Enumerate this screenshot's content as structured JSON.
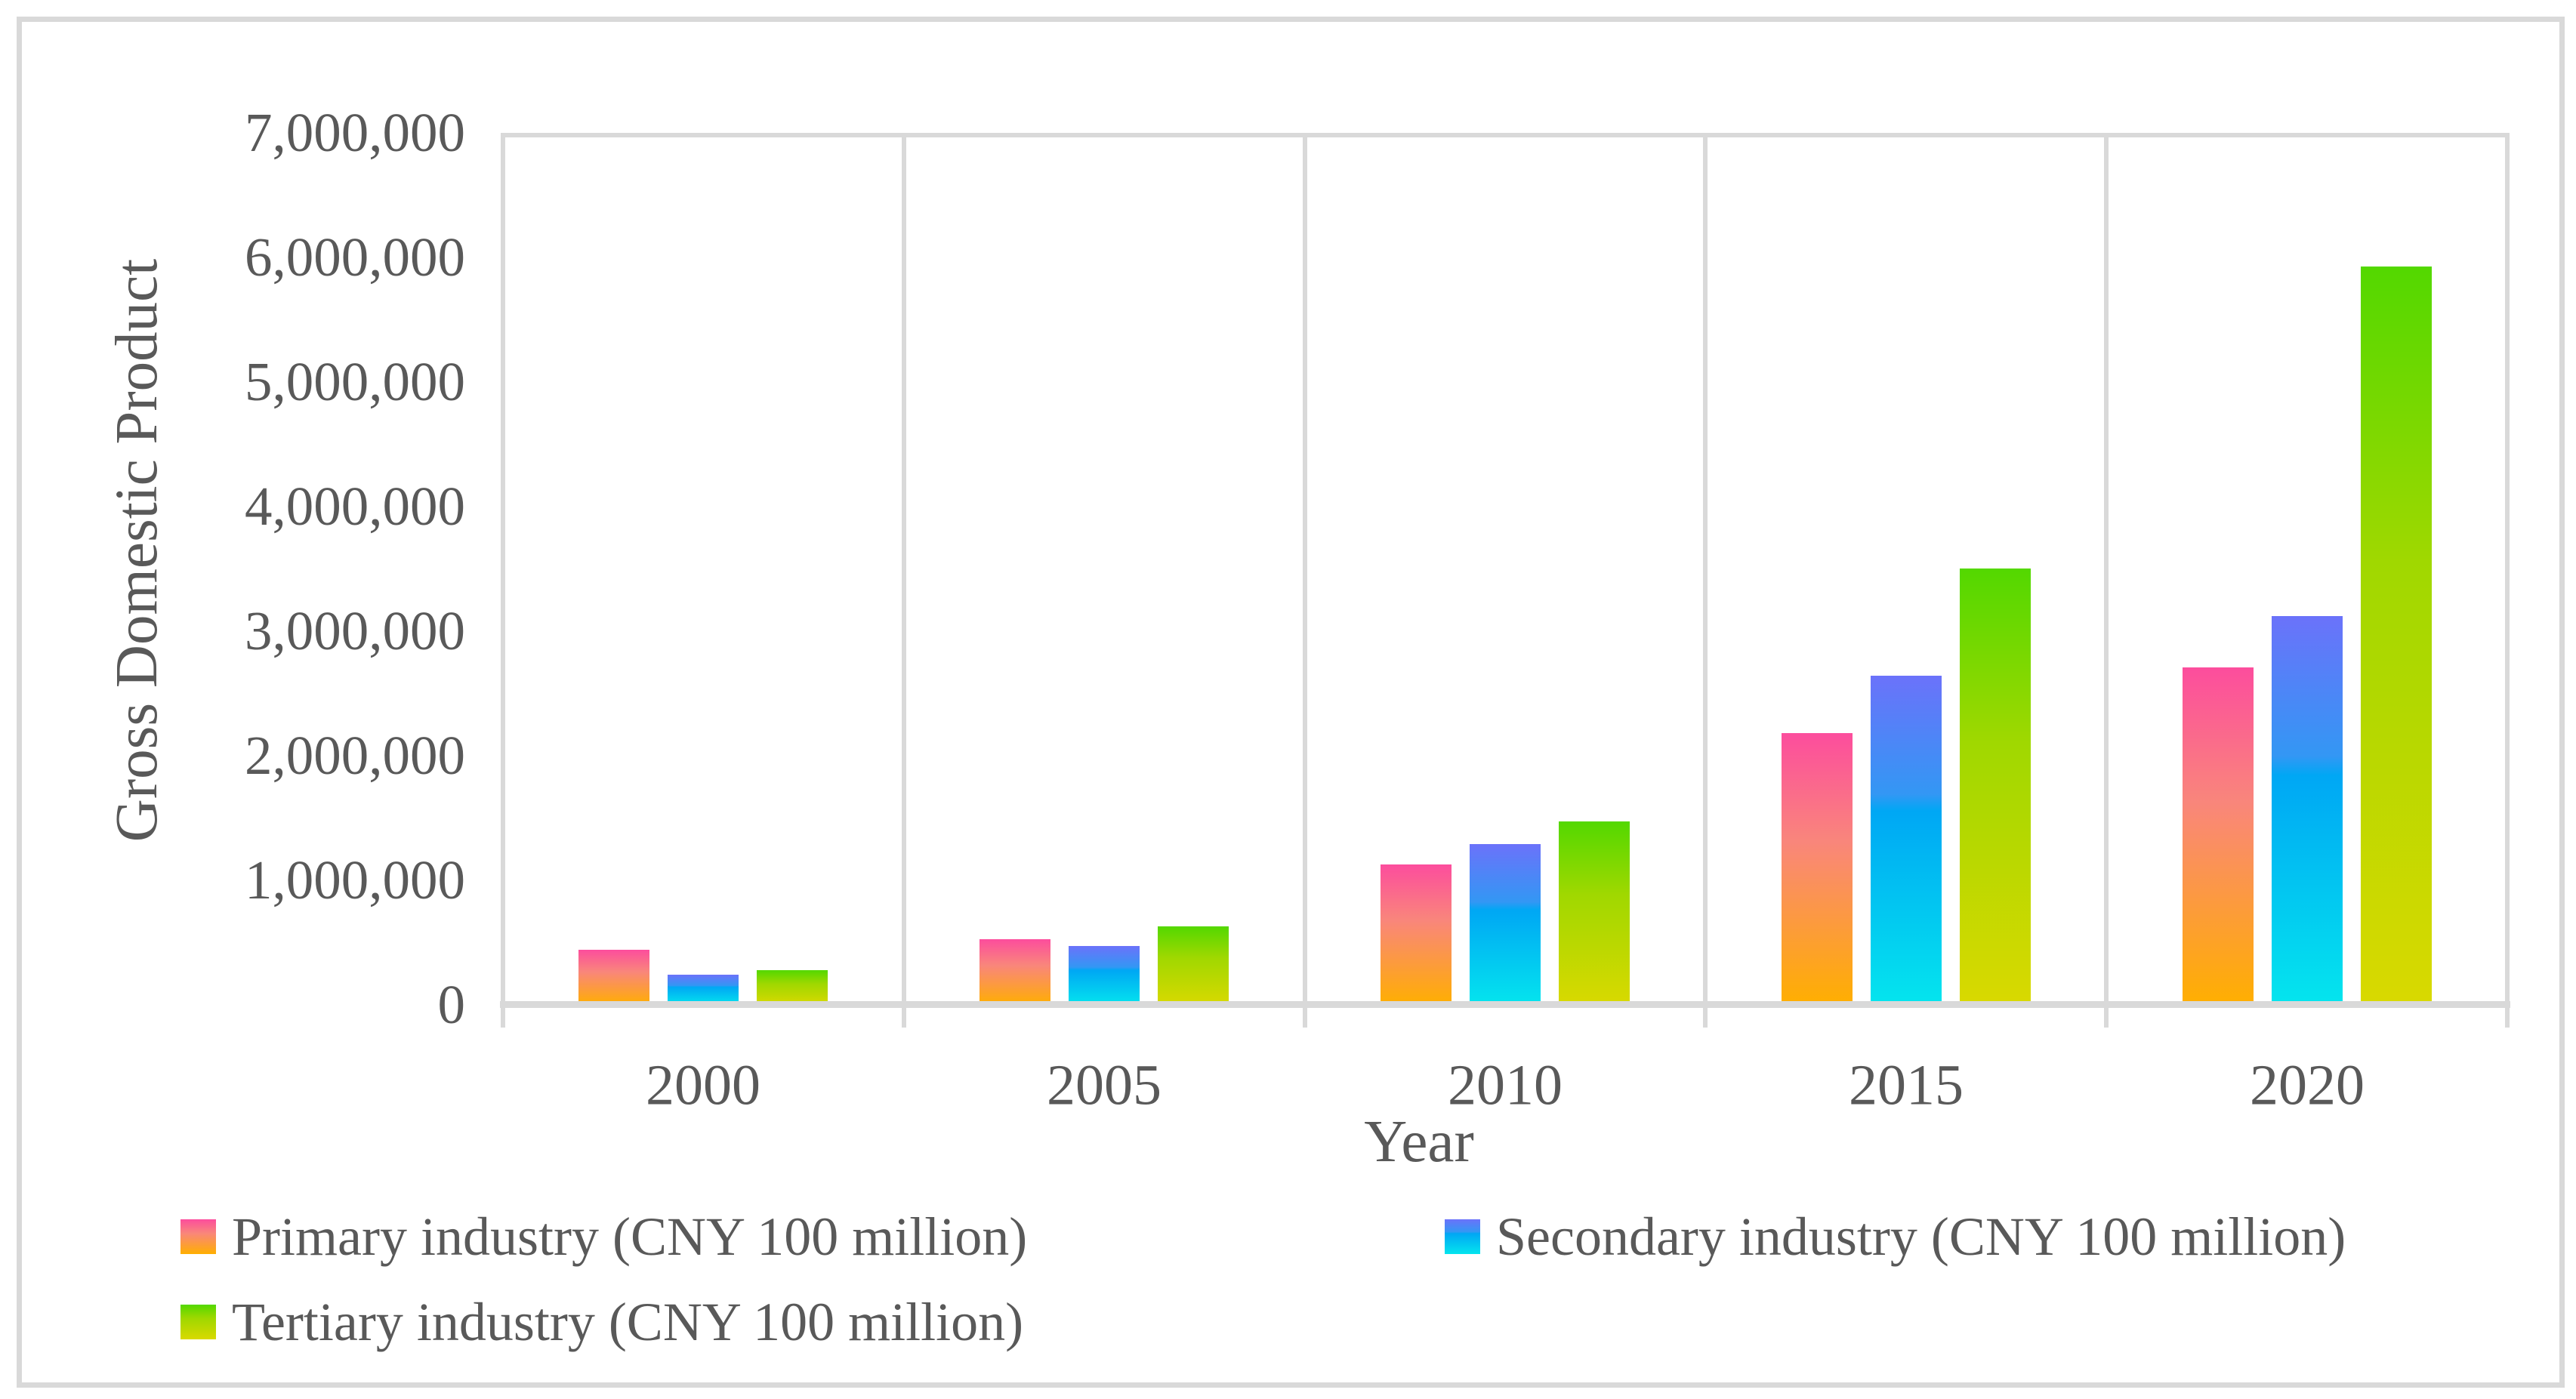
{
  "figure": {
    "background": "#ffffff",
    "border_color": "#d9d9d9",
    "grid_color": "#d9d9d9",
    "text_color": "#595959"
  },
  "chart_data": {
    "type": "bar",
    "title": "",
    "xlabel": "Year",
    "ylabel": "Gross Domestic Product",
    "categories": [
      "2000",
      "2005",
      "2010",
      "2015",
      "2020"
    ],
    "series": [
      {
        "name": "Primary industry (CNY 100 million)",
        "values": [
          440000,
          530000,
          1130000,
          2180000,
          2710000
        ],
        "gradient": [
          {
            "color": "#fc4d9d",
            "pos": 0
          },
          {
            "color": "#f9867b",
            "pos": 40
          },
          {
            "color": "#ffaf00",
            "pos": 100
          }
        ]
      },
      {
        "name": "Secondary industry (CNY 100 million)",
        "values": [
          240000,
          470000,
          1290000,
          2640000,
          3120000
        ],
        "gradient": [
          {
            "color": "#6b72fa",
            "pos": 0
          },
          {
            "color": "#3397f4",
            "pos": 36
          },
          {
            "color": "#00a7f4",
            "pos": 41
          },
          {
            "color": "#04e5ee",
            "pos": 100
          }
        ]
      },
      {
        "name": "Tertiary industry (CNY 100 million)",
        "values": [
          280000,
          630000,
          1470000,
          3500000,
          5930000
        ],
        "gradient": [
          {
            "color": "#53d800",
            "pos": 0
          },
          {
            "color": "#a0d800",
            "pos": 40
          },
          {
            "color": "#d9d900",
            "pos": 100
          }
        ]
      }
    ],
    "ylim": [
      0,
      7000000
    ],
    "ytick_step": 1000000,
    "ytick_labels": [
      "0",
      "1,000,000",
      "2,000,000",
      "3,000,000",
      "4,000,000",
      "5,000,000",
      "6,000,000",
      "7,000,000"
    ],
    "grid": "vertical gridlines at category boundaries only",
    "legend_position": "bottom"
  }
}
